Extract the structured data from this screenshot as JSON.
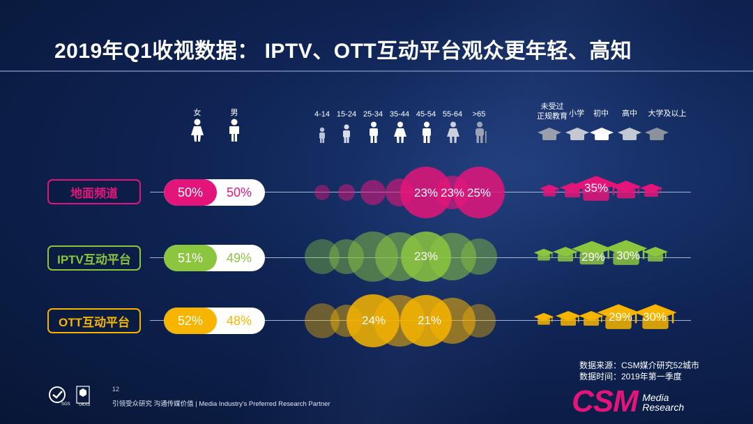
{
  "title": "2019年Q1收视数据： IPTV、OTT互动平台观众更年轻、高知",
  "headers": {
    "gender": [
      "女",
      "男"
    ],
    "age": [
      "4-14",
      "15-24",
      "25-34",
      "35-44",
      "45-54",
      "55-64",
      ">65"
    ],
    "education_line1": "未受过",
    "education_line2": "正规教育",
    "education": [
      "小学",
      "初中",
      "高中",
      "大学及以上"
    ]
  },
  "rows": [
    {
      "label": "地面频道",
      "color": "#e4157a",
      "female": "50%",
      "male": "50%",
      "age_labels": [
        "23%",
        "23%",
        "25%"
      ],
      "edu_label": "35%"
    },
    {
      "label": "IPTV互动平台",
      "color": "#8cc63f",
      "female": "51%",
      "male": "49%",
      "age_labels": [
        "23%"
      ],
      "edu_labels": [
        "29%",
        "30%"
      ]
    },
    {
      "label": "OTT互动平台",
      "color": "#f7b500",
      "female": "52%",
      "male": "48%",
      "age_labels": [
        "24%",
        "21%"
      ],
      "edu_labels": [
        "29%",
        "30%"
      ]
    }
  ],
  "source": {
    "line1": "数据来源：CSM媒介研究52城市",
    "line2": "数据时间：2019年第一季度"
  },
  "page_number": "12",
  "footer": "引领受众研究  沟通传媒价值 | Media  Industry's  Preferred  Research  Partner",
  "logo": {
    "brand": "CSM",
    "line1": "Media",
    "line2": "Research",
    "color": "#e4157a"
  },
  "badges": {
    "left": "SGS",
    "right": "UKAS"
  }
}
